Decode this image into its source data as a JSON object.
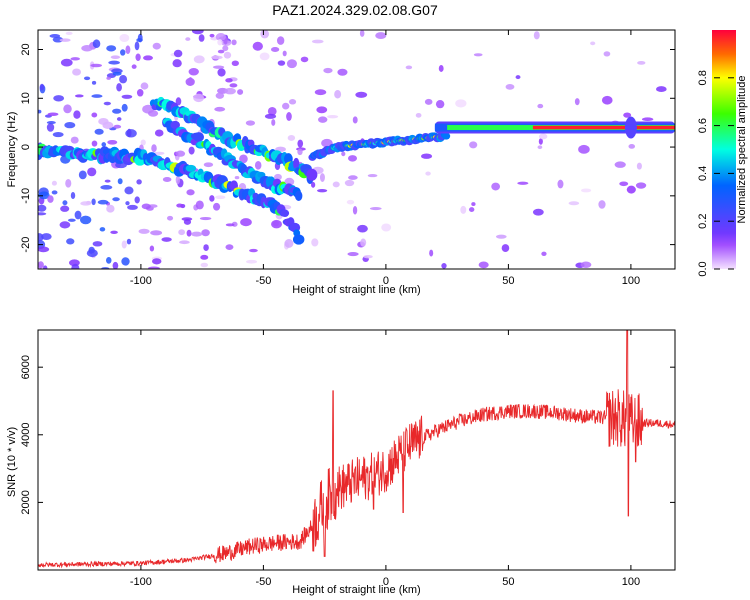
{
  "title": "PAZ1.2024.329.02.08.G07",
  "chart_data": [
    {
      "type": "heatmap",
      "xlabel": "Height of straight line (km)",
      "ylabel": "Frequency (Hz)",
      "xlim": [
        -142,
        118
      ],
      "ylim": [
        -25,
        24
      ],
      "xticks": [
        -100,
        -50,
        0,
        50,
        100
      ],
      "yticks": [
        -20,
        -10,
        0,
        10,
        20
      ],
      "colorbar": {
        "label": "Normalized spectral amplitude",
        "range": [
          0,
          1
        ],
        "ticks": [
          "0.0",
          "0.2",
          "0.4",
          "0.6",
          "0.8"
        ],
        "tick_values": [
          0,
          0.2,
          0.4,
          0.6,
          0.8
        ]
      },
      "ridges": [
        {
          "name": "main",
          "points": [
            [
              -142,
              -1
            ],
            [
              -100,
              -2
            ],
            [
              -80,
              -5
            ],
            [
              -60,
              -9
            ],
            [
              -45,
              -12
            ],
            [
              -40,
              -15
            ],
            [
              -35,
              -19
            ]
          ]
        },
        {
          "name": "upper",
          "points": [
            [
              -95,
              9
            ],
            [
              -85,
              8
            ],
            [
              -70,
              3
            ],
            [
              -55,
              0
            ],
            [
              -40,
              -3
            ],
            [
              -30,
              -6
            ]
          ]
        },
        {
          "name": "middle",
          "points": [
            [
              -90,
              5
            ],
            [
              -75,
              1
            ],
            [
              -60,
              -4
            ],
            [
              -45,
              -8
            ],
            [
              -35,
              -10
            ]
          ]
        },
        {
          "name": "recovery",
          "points": [
            [
              -30,
              -2
            ],
            [
              -20,
              0
            ],
            [
              0,
              1
            ],
            [
              20,
              2
            ],
            [
              40,
              3
            ],
            [
              60,
              4
            ],
            [
              80,
              4
            ],
            [
              100,
              4
            ],
            [
              118,
              4
            ]
          ]
        }
      ],
      "strong_band": {
        "x_start": 20,
        "x_end": 118,
        "frequency": 4
      }
    },
    {
      "type": "line",
      "xlabel": "Height of straight line (km)",
      "ylabel": "SNR (10 * v/v)",
      "xlim": [
        -142,
        118
      ],
      "ylim": [
        0,
        7100
      ],
      "xticks": [
        -100,
        -50,
        0,
        50,
        100
      ],
      "yticks": [
        2000,
        4000,
        6000
      ],
      "color": "#e8282a",
      "series": [
        {
          "trend": [
            [
              -142,
              150
            ],
            [
              -100,
              200
            ],
            [
              -80,
              300
            ],
            [
              -65,
              500
            ],
            [
              -55,
              700
            ],
            [
              -45,
              800
            ],
            [
              -35,
              850
            ],
            [
              -30,
              1300
            ],
            [
              -25,
              2000
            ],
            [
              -20,
              2400
            ],
            [
              -10,
              2700
            ],
            [
              -5,
              2800
            ],
            [
              0,
              3000
            ],
            [
              10,
              3700
            ],
            [
              20,
              4100
            ],
            [
              30,
              4400
            ],
            [
              40,
              4600
            ],
            [
              50,
              4700
            ],
            [
              60,
              4700
            ],
            [
              70,
              4650
            ],
            [
              80,
              4550
            ],
            [
              90,
              4500
            ],
            [
              95,
              4500
            ],
            [
              100,
              4350
            ],
            [
              110,
              4350
            ],
            [
              118,
              4300
            ]
          ],
          "spikes": [
            [
              -21.5,
              5300
            ],
            [
              -20,
              2400
            ],
            [
              -25,
              400
            ],
            [
              -5,
              1800
            ],
            [
              7,
              1700
            ],
            [
              98.5,
              7100
            ],
            [
              99,
              1600
            ],
            [
              102,
              3200
            ]
          ]
        }
      ]
    }
  ]
}
